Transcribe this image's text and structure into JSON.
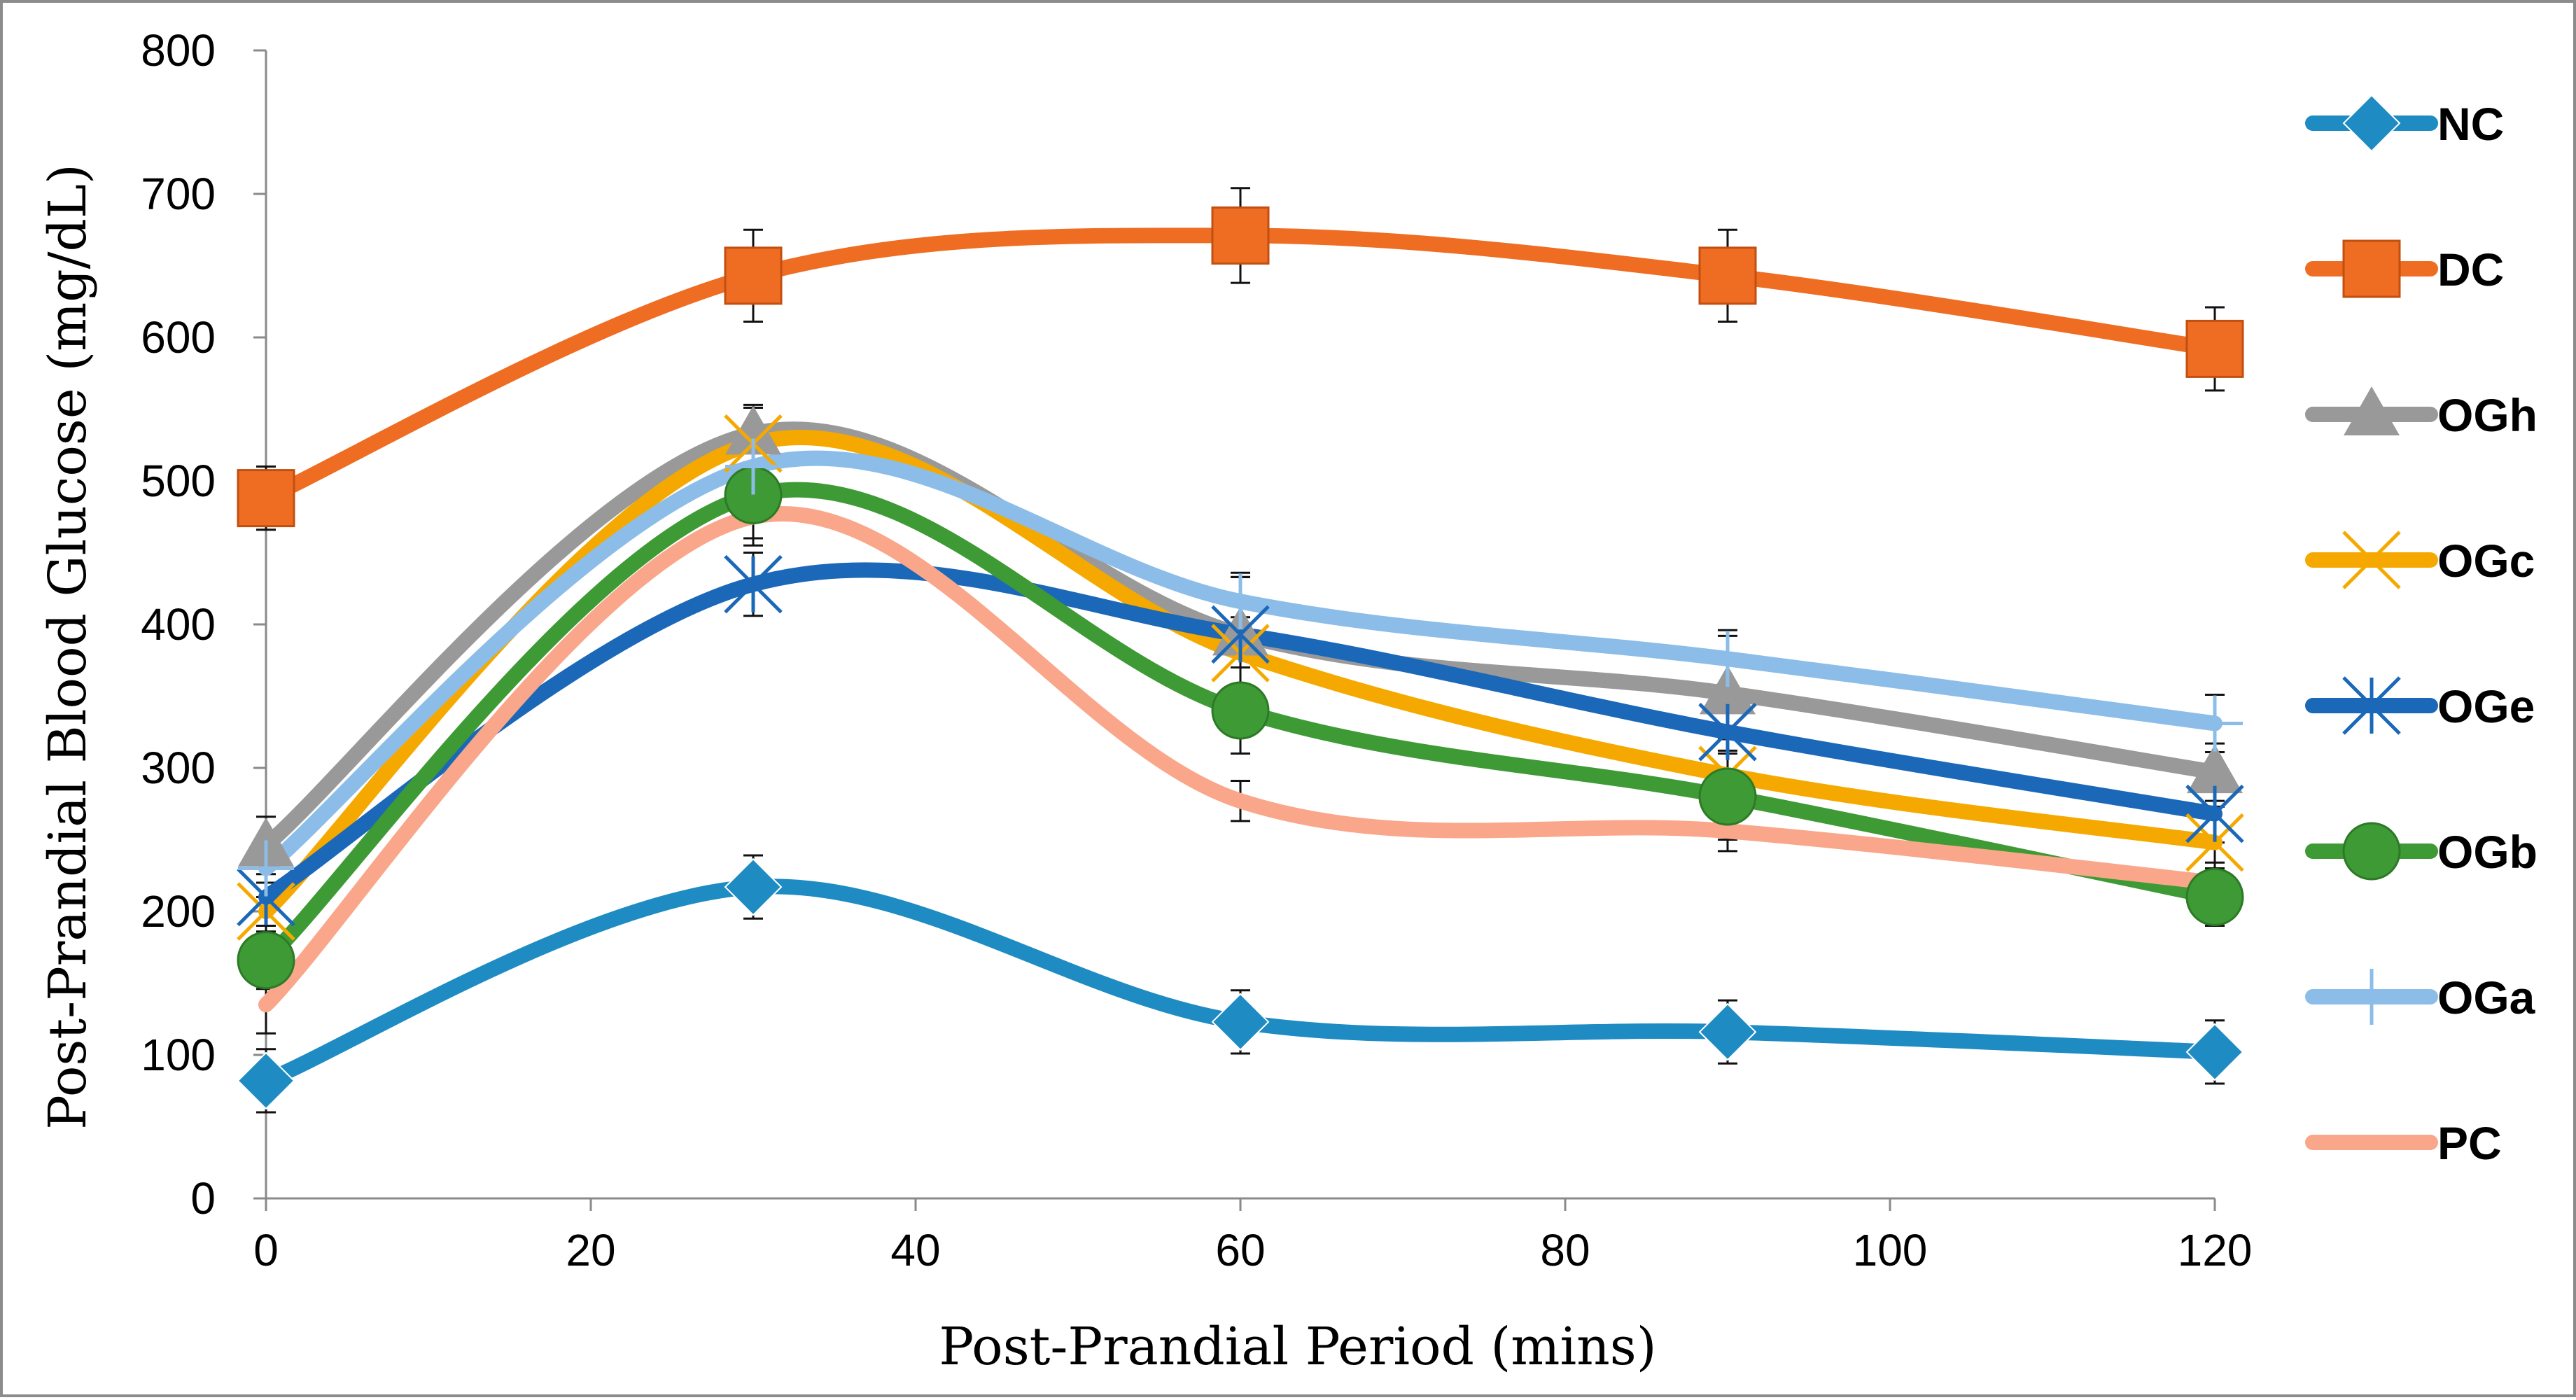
{
  "chart_data": {
    "type": "line",
    "title": "",
    "xlabel": "Post-Prandial Period (mins)",
    "ylabel": "Post-Prandial Blood Glucose (mg/dL)",
    "xlim": [
      0,
      120
    ],
    "ylim": [
      0,
      800
    ],
    "xticks": [
      0,
      20,
      40,
      60,
      80,
      100,
      120
    ],
    "yticks": [
      0,
      100,
      200,
      300,
      400,
      500,
      600,
      700,
      800
    ],
    "legend_position": "right",
    "grid": false,
    "x": [
      0,
      30,
      60,
      90,
      120
    ],
    "series": [
      {
        "name": "NC",
        "color": "#1E8BC3",
        "marker": "diamond",
        "values": [
          82,
          217,
          123,
          116,
          102
        ],
        "error": [
          22,
          22,
          22,
          22,
          22
        ]
      },
      {
        "name": "DC",
        "color": "#EE6D23",
        "marker": "square",
        "values": [
          488,
          643,
          671,
          643,
          592
        ],
        "error": [
          22,
          32,
          33,
          32,
          29
        ]
      },
      {
        "name": "OGh",
        "color": "#999999",
        "marker": "triangle",
        "values": [
          246,
          533,
          393,
          352,
          297
        ],
        "error": [
          20,
          20,
          40,
          40,
          20
        ]
      },
      {
        "name": "OGc",
        "color": "#F5A900",
        "marker": "x",
        "values": [
          200,
          526,
          380,
          295,
          248
        ],
        "error": [
          20,
          25,
          25,
          25,
          25
        ]
      },
      {
        "name": "OGe",
        "color": "#1B68B8",
        "marker": "star",
        "values": [
          210,
          428,
          393,
          325,
          268
        ],
        "error": [
          20,
          22,
          40,
          30,
          20
        ]
      },
      {
        "name": "OGb",
        "color": "#3E9A35",
        "marker": "circle",
        "values": [
          166,
          490,
          340,
          280,
          210
        ],
        "error": [
          20,
          30,
          30,
          30,
          20
        ]
      },
      {
        "name": "OGa",
        "color": "#8CBDE8",
        "marker": "plus",
        "values": [
          230,
          510,
          416,
          376,
          331
        ],
        "error": [
          20,
          20,
          20,
          20,
          20
        ]
      },
      {
        "name": "PC",
        "color": "#FAA68A",
        "marker": "none",
        "values": [
          135,
          475,
          277,
          256,
          220
        ],
        "error": [
          20,
          20,
          14,
          14,
          14
        ]
      }
    ]
  }
}
